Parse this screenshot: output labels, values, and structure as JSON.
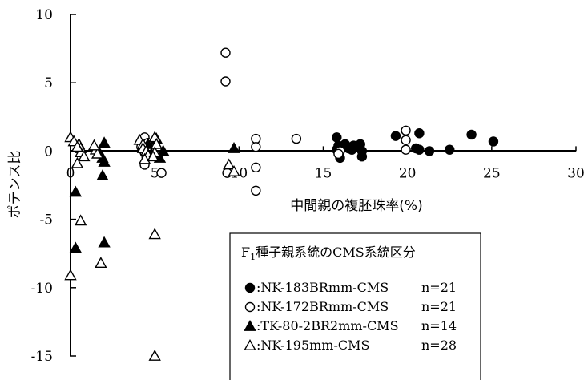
{
  "chart_data": {
    "type": "scatter",
    "xlabel": "中間親の複胚珠率(%)",
    "ylabel": "ポテンス比",
    "xlim": [
      0,
      30
    ],
    "ylim": [
      -15,
      10
    ],
    "x_ticks": [
      "0",
      "5",
      "10",
      "15",
      "20",
      "25",
      "30"
    ],
    "y_ticks": [
      "10",
      "5",
      "0",
      "-5",
      "-10",
      "-15"
    ],
    "legend": {
      "title_main": "F",
      "title_sub": "1",
      "title_rest": "種子親系統のCMS系統区分",
      "position": "bottom-center"
    },
    "series": [
      {
        "name": "NK-183BRmm-CMS",
        "legend_label": ":NK-183BRmm-CMS",
        "count_label": "n=21",
        "marker": "circle-filled",
        "points": [
          [
            15.8,
            1.0
          ],
          [
            15.9,
            0.4
          ],
          [
            15.8,
            0.1
          ],
          [
            16.0,
            -0.5
          ],
          [
            16.1,
            0.3
          ],
          [
            16.3,
            0.5
          ],
          [
            16.5,
            0.2
          ],
          [
            16.7,
            0.1
          ],
          [
            16.8,
            0.4
          ],
          [
            17.0,
            0.3
          ],
          [
            17.2,
            0.5
          ],
          [
            17.3,
            0.0
          ],
          [
            17.3,
            -0.4
          ],
          [
            19.3,
            1.1
          ],
          [
            20.7,
            1.3
          ],
          [
            20.5,
            0.2
          ],
          [
            20.7,
            0.1
          ],
          [
            21.3,
            0.0
          ],
          [
            22.5,
            0.1
          ],
          [
            23.8,
            1.2
          ],
          [
            25.1,
            0.7
          ]
        ]
      },
      {
        "name": "NK-172BRmm-CMS",
        "legend_label": ":NK-172BRmm-CMS",
        "count_label": "n=21",
        "marker": "circle-open",
        "points": [
          [
            4.4,
            1.0
          ],
          [
            4.6,
            0.6
          ],
          [
            4.2,
            0.3
          ],
          [
            4.3,
            0.1
          ],
          [
            4.4,
            -0.1
          ],
          [
            4.5,
            -0.4
          ],
          [
            4.4,
            -1.0
          ],
          [
            5.4,
            -1.6
          ],
          [
            9.2,
            7.2
          ],
          [
            9.2,
            5.1
          ],
          [
            9.3,
            -1.6
          ],
          [
            11.0,
            0.9
          ],
          [
            11.0,
            0.3
          ],
          [
            11.0,
            -1.2
          ],
          [
            11.0,
            -2.9
          ],
          [
            13.4,
            0.9
          ],
          [
            19.9,
            1.5
          ],
          [
            19.9,
            0.8
          ],
          [
            19.9,
            0.1
          ],
          [
            16.0,
            0.0
          ],
          [
            15.9,
            -0.2
          ]
        ]
      },
      {
        "name": "TK-80-2BR2mm-CMS",
        "legend_label": ":TK-80-2BR2mm-CMS",
        "count_label": "n=14",
        "marker": "triangle-filled",
        "points": [
          [
            0.3,
            -3.0
          ],
          [
            0.3,
            -7.1
          ],
          [
            2.0,
            0.6
          ],
          [
            1.9,
            -0.5
          ],
          [
            2.0,
            -0.8
          ],
          [
            1.9,
            -1.8
          ],
          [
            2.0,
            -6.7
          ],
          [
            4.6,
            0.5
          ],
          [
            5.1,
            0.9
          ],
          [
            5.3,
            -0.5
          ],
          [
            5.5,
            0.0
          ],
          [
            9.7,
            0.2
          ],
          [
            4.8,
            -0.2
          ],
          [
            1.7,
            -0.1
          ]
        ]
      },
      {
        "name": "NK-195mm-CMS",
        "legend_label": ":NK-195mm-CMS",
        "count_label": "n=28",
        "marker": "triangle-open",
        "points": [
          [
            0.0,
            1.0
          ],
          [
            0.2,
            0.7
          ],
          [
            0.5,
            0.5
          ],
          [
            0.6,
            0.2
          ],
          [
            0.6,
            -0.1
          ],
          [
            0.4,
            -0.9
          ],
          [
            0.6,
            -5.1
          ],
          [
            0.0,
            -9.1
          ],
          [
            1.5,
            0.1
          ],
          [
            1.6,
            -0.2
          ],
          [
            1.8,
            -8.2
          ],
          [
            4.1,
            0.8
          ],
          [
            4.3,
            0.5
          ],
          [
            4.3,
            0.2
          ],
          [
            4.5,
            0.0
          ],
          [
            4.6,
            -0.3
          ],
          [
            4.4,
            -0.6
          ],
          [
            5.0,
            1.0
          ],
          [
            5.1,
            0.5
          ],
          [
            5.0,
            -0.1
          ],
          [
            5.0,
            -6.1
          ],
          [
            5.0,
            -15.0
          ],
          [
            9.4,
            -1.0
          ],
          [
            9.7,
            -1.5
          ],
          [
            0.4,
            0.3
          ],
          [
            1.4,
            0.4
          ],
          [
            4.9,
            -0.4
          ],
          [
            0.8,
            -0.4
          ]
        ]
      }
    ]
  }
}
